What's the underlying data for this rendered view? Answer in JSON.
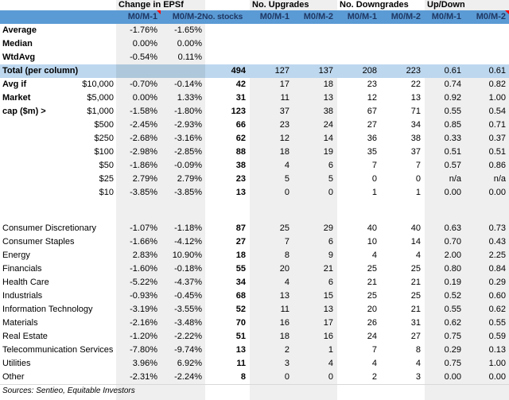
{
  "colors": {
    "header_blue": "#5B9BD5",
    "header_text": "#1F3864",
    "total_row_blue": "#BDD7EE",
    "total_row_eps_blue": "#AEC7DB",
    "column_shade": "#EFEFEF",
    "comment_red": "#FF0000"
  },
  "header": {
    "groups": [
      "Change in EPSf",
      "No. Upgrades",
      "No. Downgrades",
      "Up/Down"
    ],
    "sub": [
      "M0/M-1",
      "M0/M-2",
      "No. stocks",
      "M0/M-1",
      "M0/M-2",
      "M0/M-1",
      "M0/M-2",
      "M0/M-1",
      "M0/M-2"
    ]
  },
  "rows": [
    {
      "type": "stat",
      "cells": [
        "Average",
        "",
        "-1.76%",
        "-1.65%",
        "",
        "",
        "",
        "",
        "",
        "",
        ""
      ]
    },
    {
      "type": "stat",
      "cells": [
        "Median",
        "",
        "0.00%",
        "0.00%",
        "",
        "",
        "",
        "",
        "",
        "",
        ""
      ]
    },
    {
      "type": "stat",
      "cells": [
        "WtdAvg",
        "",
        "-0.54%",
        "0.11%",
        "",
        "",
        "",
        "",
        "",
        "",
        ""
      ]
    },
    {
      "type": "total",
      "cells": [
        "Total (per column)",
        "",
        "",
        "",
        "494",
        "127",
        "137",
        "208",
        "223",
        "0.61",
        "0.61"
      ]
    },
    {
      "type": "cap",
      "cells": [
        "Avg if",
        "$10,000",
        "-0.70%",
        "-0.14%",
        "42",
        "17",
        "18",
        "23",
        "22",
        "0.74",
        "0.82"
      ]
    },
    {
      "type": "cap",
      "cells": [
        "Market",
        "$5,000",
        "0.00%",
        "1.33%",
        "31",
        "11",
        "13",
        "12",
        "13",
        "0.92",
        "1.00"
      ]
    },
    {
      "type": "cap",
      "cells": [
        "cap ($m) >",
        "$1,000",
        "-1.58%",
        "-1.80%",
        "123",
        "37",
        "38",
        "67",
        "71",
        "0.55",
        "0.54"
      ]
    },
    {
      "type": "cap",
      "cells": [
        "",
        "$500",
        "-2.45%",
        "-2.93%",
        "66",
        "23",
        "24",
        "27",
        "34",
        "0.85",
        "0.71"
      ]
    },
    {
      "type": "cap",
      "cells": [
        "",
        "$250",
        "-2.68%",
        "-3.16%",
        "62",
        "12",
        "14",
        "36",
        "38",
        "0.33",
        "0.37"
      ]
    },
    {
      "type": "cap",
      "cells": [
        "",
        "$100",
        "-2.98%",
        "-2.85%",
        "88",
        "18",
        "19",
        "35",
        "37",
        "0.51",
        "0.51"
      ]
    },
    {
      "type": "cap",
      "cells": [
        "",
        "$50",
        "-1.86%",
        "-0.09%",
        "38",
        "4",
        "6",
        "7",
        "7",
        "0.57",
        "0.86"
      ]
    },
    {
      "type": "cap",
      "cells": [
        "",
        "$25",
        "2.79%",
        "2.79%",
        "23",
        "5",
        "5",
        "0",
        "0",
        "n/a",
        "n/a"
      ]
    },
    {
      "type": "cap",
      "cells": [
        "",
        "$10",
        "-3.85%",
        "-3.85%",
        "13",
        "0",
        "0",
        "1",
        "1",
        "0.00",
        "0.00"
      ]
    },
    {
      "type": "gap",
      "cells": [
        "",
        "",
        "",
        "",
        "",
        "",
        "",
        "",
        "",
        "",
        ""
      ]
    },
    {
      "type": "sector",
      "cells": [
        "Consumer Discretionary",
        "",
        "-1.07%",
        "-1.18%",
        "87",
        "25",
        "29",
        "40",
        "40",
        "0.63",
        "0.73"
      ]
    },
    {
      "type": "sector",
      "cells": [
        "Consumer Staples",
        "",
        "-1.66%",
        "-4.12%",
        "27",
        "7",
        "6",
        "10",
        "14",
        "0.70",
        "0.43"
      ]
    },
    {
      "type": "sector",
      "cells": [
        "Energy",
        "",
        "2.83%",
        "10.90%",
        "18",
        "8",
        "9",
        "4",
        "4",
        "2.00",
        "2.25"
      ]
    },
    {
      "type": "sector",
      "cells": [
        "Financials",
        "",
        "-1.60%",
        "-0.18%",
        "55",
        "20",
        "21",
        "25",
        "25",
        "0.80",
        "0.84"
      ]
    },
    {
      "type": "sector",
      "cells": [
        "Health Care",
        "",
        "-5.22%",
        "-4.37%",
        "34",
        "4",
        "6",
        "21",
        "21",
        "0.19",
        "0.29"
      ]
    },
    {
      "type": "sector",
      "cells": [
        "Industrials",
        "",
        "-0.93%",
        "-0.45%",
        "68",
        "13",
        "15",
        "25",
        "25",
        "0.52",
        "0.60"
      ]
    },
    {
      "type": "sector",
      "cells": [
        "Information Technology",
        "",
        "-3.19%",
        "-3.55%",
        "52",
        "11",
        "13",
        "20",
        "21",
        "0.55",
        "0.62"
      ]
    },
    {
      "type": "sector",
      "cells": [
        "Materials",
        "",
        "-2.16%",
        "-3.48%",
        "70",
        "16",
        "17",
        "26",
        "31",
        "0.62",
        "0.55"
      ]
    },
    {
      "type": "sector",
      "cells": [
        "Real Estate",
        "",
        "-1.20%",
        "-2.22%",
        "51",
        "18",
        "16",
        "24",
        "27",
        "0.75",
        "0.59"
      ]
    },
    {
      "type": "sector",
      "cells": [
        "Telecommunication Services",
        "",
        "-7.80%",
        "-9.74%",
        "13",
        "2",
        "1",
        "7",
        "8",
        "0.29",
        "0.13"
      ]
    },
    {
      "type": "sector",
      "cells": [
        "Utilities",
        "",
        "3.96%",
        "6.92%",
        "11",
        "3",
        "4",
        "4",
        "4",
        "0.75",
        "1.00"
      ]
    },
    {
      "type": "sector",
      "cells": [
        "Other",
        "",
        "-2.31%",
        "-2.24%",
        "8",
        "0",
        "0",
        "2",
        "3",
        "0.00",
        "0.00"
      ]
    },
    {
      "type": "source",
      "cells": [
        "Sources: Sentieo, Equitable Investors",
        "",
        "",
        "",
        "",
        "",
        "",
        "",
        "",
        "",
        ""
      ]
    }
  ]
}
